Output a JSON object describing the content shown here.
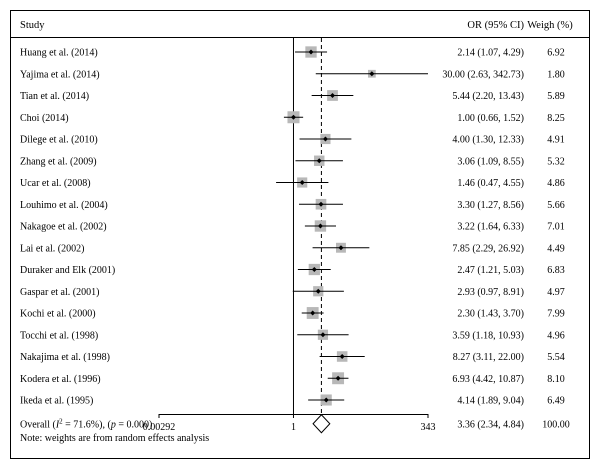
{
  "chart_data": {
    "type": "forest",
    "headers": {
      "study": "Study",
      "or": "OR (95% CI)",
      "weight": "Weigh (%)"
    },
    "studies": [
      {
        "name": "Huang et al. (2014)",
        "or": 2.14,
        "lo": 1.07,
        "hi": 4.29,
        "or_label": "2.14 (1.07, 4.29)",
        "weight": "6.92"
      },
      {
        "name": "Yajima et al. (2014)",
        "or": 30.0,
        "lo": 2.63,
        "hi": 342.73,
        "or_label": "30.00 (2.63, 342.73)",
        "weight": "1.80"
      },
      {
        "name": "Tian et al. (2014)",
        "or": 5.44,
        "lo": 2.2,
        "hi": 13.43,
        "or_label": "5.44 (2.20, 13.43)",
        "weight": "5.89"
      },
      {
        "name": "Choi (2014)",
        "or": 1.0,
        "lo": 0.66,
        "hi": 1.52,
        "or_label": "1.00 (0.66, 1.52)",
        "weight": "8.25"
      },
      {
        "name": "Dilege et al. (2010)",
        "or": 4.0,
        "lo": 1.3,
        "hi": 12.33,
        "or_label": "4.00 (1.30, 12.33)",
        "weight": "4.91"
      },
      {
        "name": "Zhang et al. (2009)",
        "or": 3.06,
        "lo": 1.09,
        "hi": 8.55,
        "or_label": "3.06 (1.09, 8.55)",
        "weight": "5.32"
      },
      {
        "name": "Ucar et al. (2008)",
        "or": 1.46,
        "lo": 0.47,
        "hi": 4.55,
        "or_label": "1.46 (0.47, 4.55)",
        "weight": "4.86"
      },
      {
        "name": "Louhimo et al. (2004)",
        "or": 3.3,
        "lo": 1.27,
        "hi": 8.56,
        "or_label": "3.30 (1.27, 8.56)",
        "weight": "5.66"
      },
      {
        "name": "Nakagoe et al. (2002)",
        "or": 3.22,
        "lo": 1.64,
        "hi": 6.33,
        "or_label": "3.22 (1.64, 6.33)",
        "weight": "7.01"
      },
      {
        "name": "Lai et al. (2002)",
        "or": 7.85,
        "lo": 2.29,
        "hi": 26.92,
        "or_label": "7.85 (2.29, 26.92)",
        "weight": "4.49"
      },
      {
        "name": "Duraker and Elk (2001)",
        "or": 2.47,
        "lo": 1.21,
        "hi": 5.03,
        "or_label": "2.47 (1.21, 5.03)",
        "weight": "6.83"
      },
      {
        "name": "Gaspar et al. (2001)",
        "or": 2.93,
        "lo": 0.97,
        "hi": 8.91,
        "or_label": "2.93 (0.97, 8.91)",
        "weight": "4.97"
      },
      {
        "name": "Kochi et al. (2000)",
        "or": 2.3,
        "lo": 1.43,
        "hi": 3.7,
        "or_label": "2.30 (1.43, 3.70)",
        "weight": "7.99"
      },
      {
        "name": "Tocchi et al. (1998)",
        "or": 3.59,
        "lo": 1.18,
        "hi": 10.93,
        "or_label": "3.59 (1.18, 10.93)",
        "weight": "4.96"
      },
      {
        "name": "Nakajima et al. (1998)",
        "or": 8.27,
        "lo": 3.11,
        "hi": 22.0,
        "or_label": "8.27 (3.11, 22.00)",
        "weight": "5.54"
      },
      {
        "name": "Kodera et al. (1996)",
        "or": 6.93,
        "lo": 4.42,
        "hi": 10.87,
        "or_label": "6.93 (4.42, 10.87)",
        "weight": "8.10"
      },
      {
        "name": "Ikeda et al. (1995)",
        "or": 4.14,
        "lo": 1.89,
        "hi": 9.04,
        "or_label": "4.14 (1.89, 9.04)",
        "weight": "6.49"
      }
    ],
    "overall": {
      "label_prefix": "Overall (",
      "label_i2_symbol": "I",
      "label_i2_sup": "2",
      "label_rest": " = 71.6%), (",
      "label_p_symbol": "p",
      "label_p_rest": " = 0.000)",
      "or": 3.36,
      "lo": 2.34,
      "hi": 4.84,
      "or_label": "3.36 (2.34, 4.84)",
      "weight": "100.00"
    },
    "x_scale": "log",
    "xlim": [
      0.00292,
      343
    ],
    "x_ticks": [
      {
        "value": 0.00292,
        "label": "0.00292"
      },
      {
        "value": 1,
        "label": "1"
      },
      {
        "value": 343,
        "label": "343"
      }
    ],
    "null_line": 1,
    "footnote": "Note: weights are from random effects analysis"
  }
}
